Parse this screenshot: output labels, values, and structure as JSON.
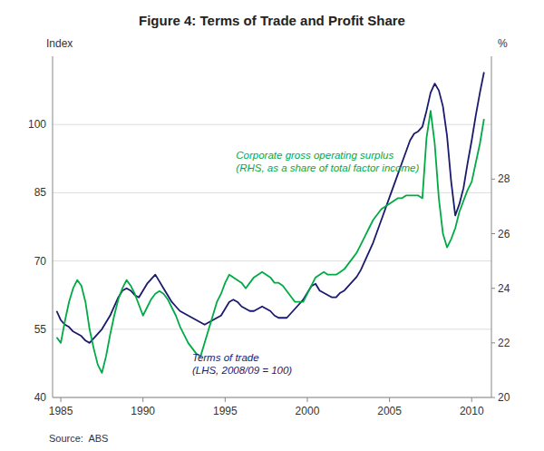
{
  "chart_data": {
    "type": "line",
    "title": "Figure 4: Terms of Trade and Profit Share",
    "source": "Source:  ABS",
    "ylabel": "Index",
    "y2label": "%",
    "annotations": [
      "Terms of trade\n(LHS, 2008/09 = 100)",
      "Corporate gross operating surplus\n(RHS, as a share of total factor income)"
    ],
    "x": [
      1984.75,
      1985.0,
      1985.25,
      1985.5,
      1985.75,
      1986.0,
      1986.25,
      1986.5,
      1986.75,
      1987.0,
      1987.25,
      1987.5,
      1987.75,
      1988.0,
      1988.25,
      1988.5,
      1988.75,
      1989.0,
      1989.25,
      1989.5,
      1989.75,
      1990.0,
      1990.25,
      1990.5,
      1990.75,
      1991.0,
      1991.25,
      1991.5,
      1991.75,
      1992.0,
      1992.25,
      1992.5,
      1992.75,
      1993.0,
      1993.25,
      1993.5,
      1993.75,
      1994.0,
      1994.25,
      1994.5,
      1994.75,
      1995.0,
      1995.25,
      1995.5,
      1995.75,
      1996.0,
      1996.25,
      1996.5,
      1996.75,
      1997.0,
      1997.25,
      1997.5,
      1997.75,
      1998.0,
      1998.25,
      1998.5,
      1998.75,
      1999.0,
      1999.25,
      1999.5,
      1999.75,
      2000.0,
      2000.25,
      2000.5,
      2000.75,
      2001.0,
      2001.25,
      2001.5,
      2001.75,
      2002.0,
      2002.25,
      2002.5,
      2002.75,
      2003.0,
      2003.25,
      2003.5,
      2003.75,
      2004.0,
      2004.25,
      2004.5,
      2004.75,
      2005.0,
      2005.25,
      2005.5,
      2005.75,
      2006.0,
      2006.25,
      2006.5,
      2006.75,
      2007.0,
      2007.25,
      2007.5,
      2007.75,
      2008.0,
      2008.25,
      2008.5,
      2008.75,
      2009.0,
      2009.25,
      2009.5,
      2009.75,
      2010.0,
      2010.25,
      2010.5,
      2010.75
    ],
    "series": [
      {
        "color": "#1a1a6e",
        "values": [
          59.0,
          57.0,
          56.0,
          55.5,
          54.5,
          54.0,
          53.5,
          52.5,
          52.0,
          53.0,
          54.0,
          55.0,
          56.5,
          58.0,
          60.0,
          62.0,
          63.5,
          64.0,
          63.5,
          62.5,
          62.0,
          63.5,
          65.0,
          66.0,
          67.0,
          65.5,
          64.0,
          62.5,
          61.0,
          60.0,
          59.0,
          58.5,
          58.0,
          57.5,
          57.0,
          56.5,
          56.0,
          56.5,
          57.0,
          57.5,
          58.0,
          59.5,
          61.0,
          61.5,
          61.0,
          60.0,
          59.5,
          59.0,
          59.0,
          59.5,
          60.0,
          59.5,
          59.0,
          58.0,
          57.5,
          57.5,
          57.5,
          58.5,
          59.5,
          60.5,
          61.5,
          63.0,
          64.5,
          65.0,
          63.5,
          63.0,
          62.5,
          62.0,
          62.0,
          63.0,
          63.5,
          64.5,
          65.5,
          66.5,
          68.0,
          70.0,
          72.0,
          74.0,
          76.5,
          79.0,
          81.5,
          84.0,
          86.5,
          89.0,
          91.5,
          94.0,
          96.5,
          98.0,
          98.5,
          99.5,
          103.0,
          107.0,
          109.0,
          107.5,
          104.0,
          97.5,
          87.5,
          80.0,
          82.5,
          86.0,
          91.5,
          96.5,
          102.0,
          107.0,
          111.5
        ]
      },
      {
        "color": "#00aa44",
        "axis": "y2",
        "values": [
          22.2,
          22.0,
          22.8,
          23.5,
          24.0,
          24.3,
          24.1,
          23.5,
          22.5,
          21.8,
          21.2,
          20.9,
          21.5,
          22.3,
          23.0,
          23.6,
          24.0,
          24.3,
          24.1,
          23.8,
          23.4,
          23.0,
          23.3,
          23.6,
          23.8,
          23.9,
          23.8,
          23.6,
          23.3,
          23.0,
          22.6,
          22.3,
          22.0,
          21.8,
          21.6,
          21.5,
          22.0,
          22.5,
          23.0,
          23.5,
          23.8,
          24.2,
          24.5,
          24.4,
          24.3,
          24.2,
          24.0,
          24.2,
          24.4,
          24.5,
          24.6,
          24.5,
          24.4,
          24.2,
          24.2,
          24.1,
          23.9,
          23.7,
          23.5,
          23.5,
          23.5,
          23.8,
          24.1,
          24.4,
          24.5,
          24.6,
          24.5,
          24.5,
          24.5,
          24.6,
          24.7,
          24.9,
          25.1,
          25.3,
          25.6,
          25.9,
          26.2,
          26.5,
          26.7,
          26.9,
          27.0,
          27.1,
          27.2,
          27.3,
          27.3,
          27.4,
          27.4,
          27.4,
          27.4,
          27.3,
          29.5,
          30.5,
          29.3,
          27.3,
          26.0,
          25.5,
          25.8,
          26.2,
          26.8,
          27.2,
          27.6,
          27.9,
          28.6,
          29.3,
          30.2
        ]
      }
    ],
    "xlim": [
      1984.5,
      2011.2
    ],
    "xticks": [
      1985,
      1990,
      1995,
      2000,
      2005,
      2010
    ],
    "ylim": [
      40,
      115
    ],
    "yticks": [
      40,
      55,
      70,
      85,
      100
    ],
    "y2lim": [
      20,
      32.5
    ],
    "y2ticks": [
      20,
      22,
      24,
      26,
      28
    ],
    "grid": true
  }
}
